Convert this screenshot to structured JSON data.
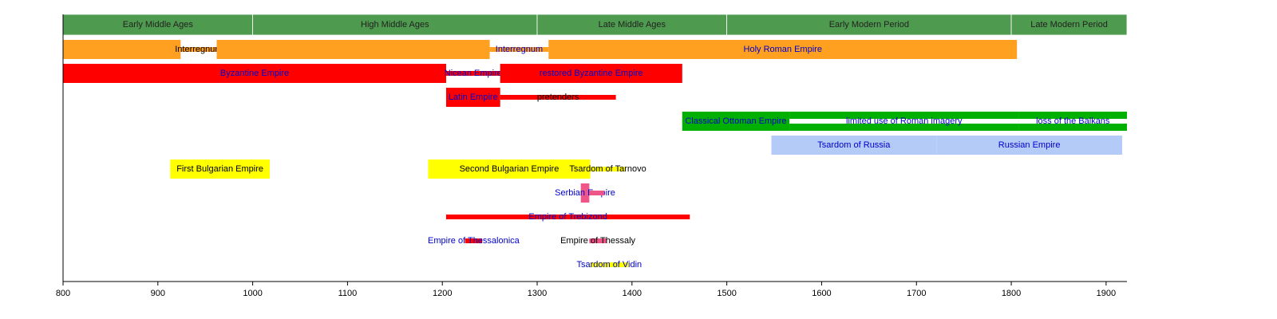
{
  "chart_data": {
    "type": "timeline",
    "xlim": [
      800,
      1922
    ],
    "xticks": [
      800,
      900,
      1000,
      1100,
      1200,
      1300,
      1400,
      1500,
      1600,
      1700,
      1800,
      1900
    ],
    "eras": [
      {
        "name": "Early Middle Ages",
        "start": 800,
        "end": 1000,
        "color": "#4e9a4e"
      },
      {
        "name": "High Middle Ages",
        "start": 1000,
        "end": 1300,
        "color": "#4e9a4e"
      },
      {
        "name": "Late Middle Ages",
        "start": 1300,
        "end": 1500,
        "color": "#4e9a4e"
      },
      {
        "name": "Early Modern Period",
        "start": 1500,
        "end": 1800,
        "color": "#4e9a4e"
      },
      {
        "name": "Late Modern Period",
        "start": 1800,
        "end": 1922,
        "color": "#4e9a4e"
      }
    ],
    "rows": [
      {
        "spans": [
          {
            "label": null,
            "start": 800,
            "end": 924,
            "color": "#ffa020",
            "style": "full",
            "label_color": "#000000"
          },
          {
            "label": "Interregnum",
            "start": 924,
            "end": 962,
            "color": "#ffa020",
            "style": "thin",
            "label_color": "#000000"
          },
          {
            "label": null,
            "start": 962,
            "end": 1250,
            "color": "#ffa020",
            "style": "full",
            "label_color": "#000000"
          },
          {
            "label": "Interregnum",
            "start": 1250,
            "end": 1312,
            "color": "#ffa020",
            "style": "thin",
            "label_color": "#0000cc"
          },
          {
            "label": "Holy Roman Empire",
            "start": 1312,
            "end": 1806,
            "color": "#ffa020",
            "style": "full",
            "label_color": "#0000cc"
          }
        ]
      },
      {
        "spans": [
          {
            "label": "Byzantine Empire",
            "start": 800,
            "end": 1204,
            "color": "#ff0000",
            "style": "full",
            "label_color": "#0000cc"
          },
          {
            "label": "Nicean Empire",
            "start": 1204,
            "end": 1261,
            "color": "#ff0000",
            "style": "thin",
            "label_color": "#0000cc"
          },
          {
            "label": "restored Byzantine Empire",
            "start": 1261,
            "end": 1453,
            "color": "#ff0000",
            "style": "full",
            "label_color": "#0000cc"
          }
        ]
      },
      {
        "spans": [
          {
            "label": "Latin Empire",
            "start": 1204,
            "end": 1261,
            "color": "#ff0000",
            "style": "full",
            "label_color": "#0000cc"
          },
          {
            "label": "pretenders",
            "start": 1261,
            "end": 1383,
            "color": "#ff0000",
            "style": "thin",
            "label_color": "#000000"
          }
        ]
      },
      {
        "spans": [
          {
            "label": "Classical Ottoman Empire",
            "start": 1453,
            "end": 1566,
            "color": "#00b000",
            "style": "full",
            "label_color": "#0000cc"
          },
          {
            "label": "limited use of Roman imagery",
            "start": 1566,
            "end": 1808,
            "color": "#00b000",
            "style": "split",
            "label_color": "#0000cc"
          },
          {
            "label": "loss of the Balkans",
            "start": 1808,
            "end": 1922,
            "color": "#00b000",
            "style": "split",
            "label_color": "#0000cc"
          }
        ]
      },
      {
        "spans": [
          {
            "label": "Tsardom of Russia",
            "start": 1547,
            "end": 1721,
            "color": "#b4cbf7",
            "style": "full",
            "label_color": "#0000cc"
          },
          {
            "label": "Russian Empire",
            "start": 1721,
            "end": 1917,
            "color": "#b4cbf7",
            "style": "full",
            "label_color": "#0000cc"
          }
        ]
      },
      {
        "spans": [
          {
            "label": "First Bulgarian Empire",
            "start": 913,
            "end": 1018,
            "color": "#ffff00",
            "style": "full",
            "label_color": "#000000"
          },
          {
            "label": "Second Bulgarian Empire",
            "start": 1185,
            "end": 1356,
            "color": "#ffff00",
            "style": "full",
            "label_color": "#000000"
          },
          {
            "label": "Tsardom of Tarnovo",
            "start": 1356,
            "end": 1393,
            "color": "#ffff00",
            "style": "thin",
            "label_color": "#000000"
          }
        ]
      },
      {
        "spans": [
          {
            "label": "Serbian Empire",
            "start": 1346,
            "end": 1355,
            "color": "#ee5588",
            "style": "full",
            "label_color": "#0000cc"
          },
          {
            "label": null,
            "start": 1355,
            "end": 1371,
            "color": "#ee5588",
            "style": "thin",
            "label_color": "#0000cc"
          }
        ]
      },
      {
        "spans": [
          {
            "label": "Empire of Trebizond",
            "start": 1204,
            "end": 1461,
            "color": "#ff0000",
            "style": "thin",
            "label_color": "#0000cc"
          }
        ]
      },
      {
        "spans": [
          {
            "label": "Empire of Thessalonica",
            "start": 1224,
            "end": 1242,
            "color": "#ff0000",
            "style": "thin",
            "label_color": "#0000cc"
          },
          {
            "label": "Empire of Thessaly",
            "start": 1355,
            "end": 1373,
            "color": "#ee5588",
            "style": "thin",
            "label_color": "#000000"
          }
        ]
      },
      {
        "spans": [
          {
            "label": "Tsardom of Vidin",
            "start": 1356,
            "end": 1396,
            "color": "#ffff00",
            "style": "thin",
            "label_color": "#0000cc"
          }
        ]
      }
    ]
  }
}
